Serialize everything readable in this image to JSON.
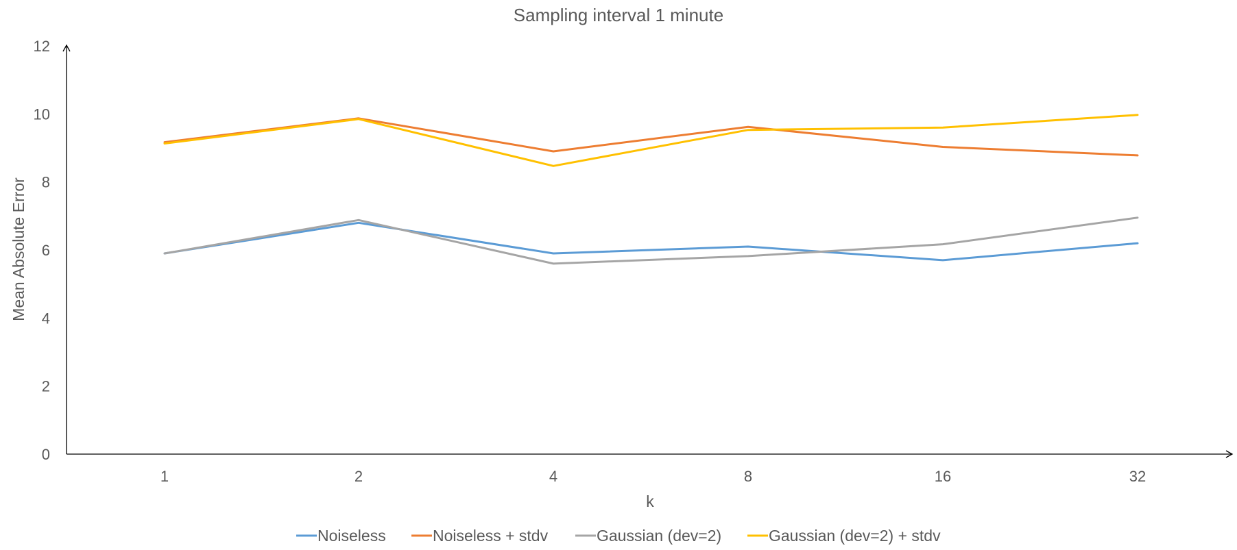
{
  "chart_data": {
    "type": "line",
    "title": "Sampling interval 1 minute",
    "xlabel": "k",
    "ylabel": "Mean Absolute Error",
    "categories": [
      "1",
      "2",
      "4",
      "8",
      "16",
      "32"
    ],
    "ylim": [
      0,
      12
    ],
    "yticks": [
      0,
      2,
      4,
      6,
      8,
      10,
      12
    ],
    "grid": false,
    "legend_position": "bottom",
    "series": [
      {
        "name": "Noiseless",
        "color": "#5b9bd5",
        "values": [
          5.9,
          6.8,
          5.9,
          6.1,
          5.7,
          6.2
        ]
      },
      {
        "name": "Noiseless + stdv",
        "color": "#ed7d31",
        "values": [
          9.17,
          9.87,
          8.9,
          9.62,
          9.03,
          8.78
        ]
      },
      {
        "name": "Gaussian (dev=2)",
        "color": "#a5a5a5",
        "values": [
          5.9,
          6.88,
          5.6,
          5.82,
          6.17,
          6.95
        ]
      },
      {
        "name": "Gaussian (dev=2) + stdv",
        "color": "#ffc000",
        "values": [
          9.13,
          9.85,
          8.47,
          9.53,
          9.6,
          9.97
        ]
      }
    ]
  }
}
